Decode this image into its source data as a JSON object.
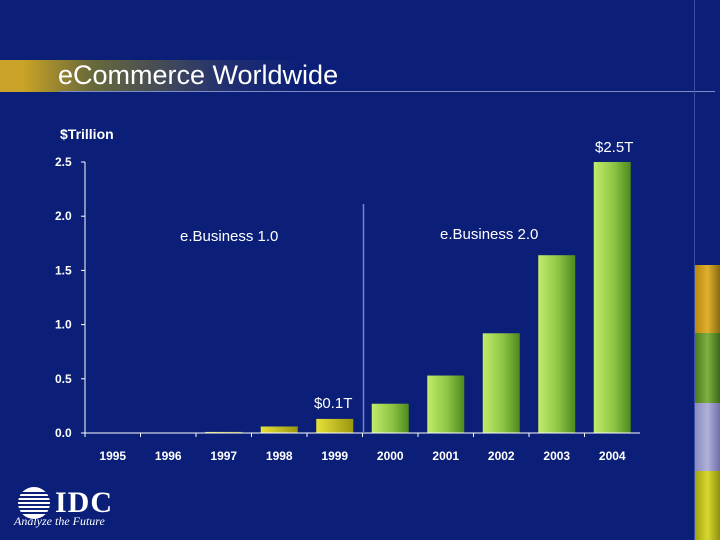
{
  "title": "eCommerce Worldwide",
  "logo": {
    "name": "IDC",
    "tagline": "Analyze the Future"
  },
  "colors": {
    "background": "#0b1f78",
    "bar_light": "#a8d858",
    "bar_dark": "#4e8a1e",
    "bar_early": "#c6c21a",
    "axis": "#ffffff"
  },
  "chart_data": {
    "type": "bar",
    "ylabel": "$Trillion",
    "xlabel": "",
    "categories": [
      "1995",
      "1996",
      "1997",
      "1998",
      "1999",
      "2000",
      "2001",
      "2002",
      "2003",
      "2004"
    ],
    "values": [
      0.0,
      0.0,
      0.01,
      0.06,
      0.13,
      0.27,
      0.53,
      0.92,
      1.64,
      2.5
    ],
    "ylim": [
      0,
      2.5
    ],
    "yticks": [
      "0.0",
      "0.5",
      "1.0",
      "1.5",
      "2.0",
      "2.5"
    ],
    "yticks_values": [
      0,
      0.5,
      1.0,
      1.5,
      2.0,
      2.5
    ],
    "grid": false,
    "annotations": {
      "era1": "e.Business 1.0",
      "era2": "e.Business 2.0",
      "low_value": "$0.1T",
      "high_value": "$2.5T"
    },
    "era_divider_between": [
      "1999",
      "2000"
    ]
  }
}
